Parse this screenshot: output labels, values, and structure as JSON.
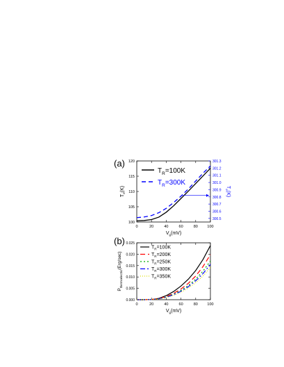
{
  "chart_data": [
    {
      "panel_label": "(a)",
      "type": "line",
      "xlabel": "V",
      "xlabel_sub": "g",
      "xlabel_unit": "(mV)",
      "xlim": [
        0,
        100
      ],
      "xticks": [
        0,
        20,
        40,
        60,
        80,
        100
      ],
      "ylabel_left": "T",
      "ylabel_left_sub": "e",
      "ylabel_left_unit": "(K)",
      "ylim_left": [
        100,
        120
      ],
      "yticks_left": [
        100,
        105,
        110,
        115,
        120
      ],
      "ylabel_right": "T",
      "ylabel_right_sub": "e",
      "ylabel_right_unit": "(K)",
      "ylim_right": [
        300.45,
        301.3
      ],
      "yticks_right": [
        300.5,
        300.6,
        300.7,
        300.8,
        300.9,
        301.0,
        301.1,
        301.2,
        301.3
      ],
      "right_axis_color": "#0000ff",
      "legend_position": "top-left",
      "series": [
        {
          "name": "T",
          "name_sub": "R",
          "name_rest": "=100K",
          "axis": "left",
          "color": "#000000",
          "dash": "",
          "x": [
            0,
            10,
            20,
            30,
            40,
            50,
            60,
            70,
            80,
            90,
            100
          ],
          "y": [
            100.4,
            100.5,
            100.8,
            101.6,
            103.2,
            105.3,
            107.7,
            110.1,
            112.6,
            115.1,
            117.6
          ]
        },
        {
          "name": "T",
          "name_sub": "R",
          "name_rest": "=300K",
          "axis": "right",
          "color": "#0000ff",
          "dash": "6,4",
          "x": [
            0,
            10,
            20,
            30,
            40,
            50,
            60,
            70,
            80,
            90,
            100
          ],
          "y": [
            300.51,
            300.52,
            300.54,
            300.58,
            300.64,
            300.72,
            300.81,
            300.91,
            301.02,
            301.13,
            301.23
          ]
        }
      ]
    },
    {
      "panel_label": "(b)",
      "type": "line",
      "xlabel": "V",
      "xlabel_sub": "g",
      "xlabel_unit": "(mV)",
      "xlim": [
        0,
        100
      ],
      "xticks": [
        0,
        20,
        40,
        60,
        80,
        100
      ],
      "ylabel": "P",
      "ylabel_sub": "thermoelectric",
      "ylabel_unit": "(Erg/sec)",
      "ylim": [
        0,
        0.025
      ],
      "yticks": [
        0.0,
        0.005,
        0.01,
        0.015,
        0.02,
        0.025
      ],
      "legend_position": "top-left",
      "series": [
        {
          "name": "T",
          "name_sub": "R",
          "name_rest": "=100K",
          "color": "#000000",
          "dash": "",
          "x": [
            0,
            10,
            20,
            30,
            40,
            50,
            60,
            70,
            80,
            90,
            100
          ],
          "y": [
            0,
            0,
            0.0001,
            0.0006,
            0.0018,
            0.0036,
            0.006,
            0.009,
            0.0128,
            0.0177,
            0.0238
          ]
        },
        {
          "name": "T",
          "name_sub": "R",
          "name_rest": "=200K",
          "color": "#ff0000",
          "dash": "7,4",
          "x": [
            0,
            10,
            20,
            30,
            40,
            50,
            60,
            70,
            80,
            90,
            100
          ],
          "y": [
            0,
            0,
            0.0001,
            0.0005,
            0.0014,
            0.0028,
            0.0047,
            0.0072,
            0.0104,
            0.0146,
            0.0198
          ]
        },
        {
          "name": "T",
          "name_sub": "R",
          "name_rest": "=250K",
          "color": "#00aa00",
          "dash": "2,3",
          "x": [
            0,
            10,
            20,
            30,
            40,
            50,
            60,
            70,
            80,
            90,
            100
          ],
          "y": [
            0,
            0,
            0.0001,
            0.0004,
            0.0012,
            0.0024,
            0.0041,
            0.0062,
            0.009,
            0.0126,
            0.017
          ]
        },
        {
          "name": "T",
          "name_sub": "R",
          "name_rest": "=300K",
          "color": "#0000ff",
          "dash": "7,3,2,3",
          "x": [
            0,
            10,
            20,
            30,
            40,
            50,
            60,
            70,
            80,
            90,
            100
          ],
          "y": [
            0,
            0,
            0.0001,
            0.0004,
            0.0011,
            0.0022,
            0.0037,
            0.0057,
            0.0083,
            0.0115,
            0.0155
          ]
        },
        {
          "name": "T",
          "name_sub": "R",
          "name_rest": "=350K",
          "color": "#dddd00",
          "dash": "1,2",
          "x": [
            0,
            10,
            20,
            30,
            40,
            50,
            60,
            70,
            80,
            90,
            100
          ],
          "y": [
            0,
            0,
            0.0001,
            0.0003,
            0.0009,
            0.0019,
            0.0033,
            0.0051,
            0.0075,
            0.0104,
            0.0142
          ]
        }
      ]
    }
  ]
}
